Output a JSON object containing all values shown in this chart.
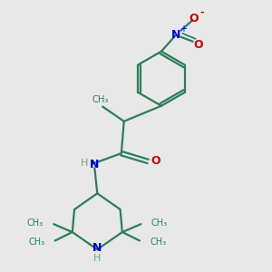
{
  "bg_color": "#e8e8e8",
  "bond_color": "#2d7d5a",
  "N_color": "#0000cd",
  "O_color": "#cc0000",
  "H_color": "#6aaa7a",
  "figsize": [
    3.0,
    3.0
  ],
  "dpi": 100,
  "xlim": [
    0,
    10
  ],
  "ylim": [
    0,
    10
  ]
}
